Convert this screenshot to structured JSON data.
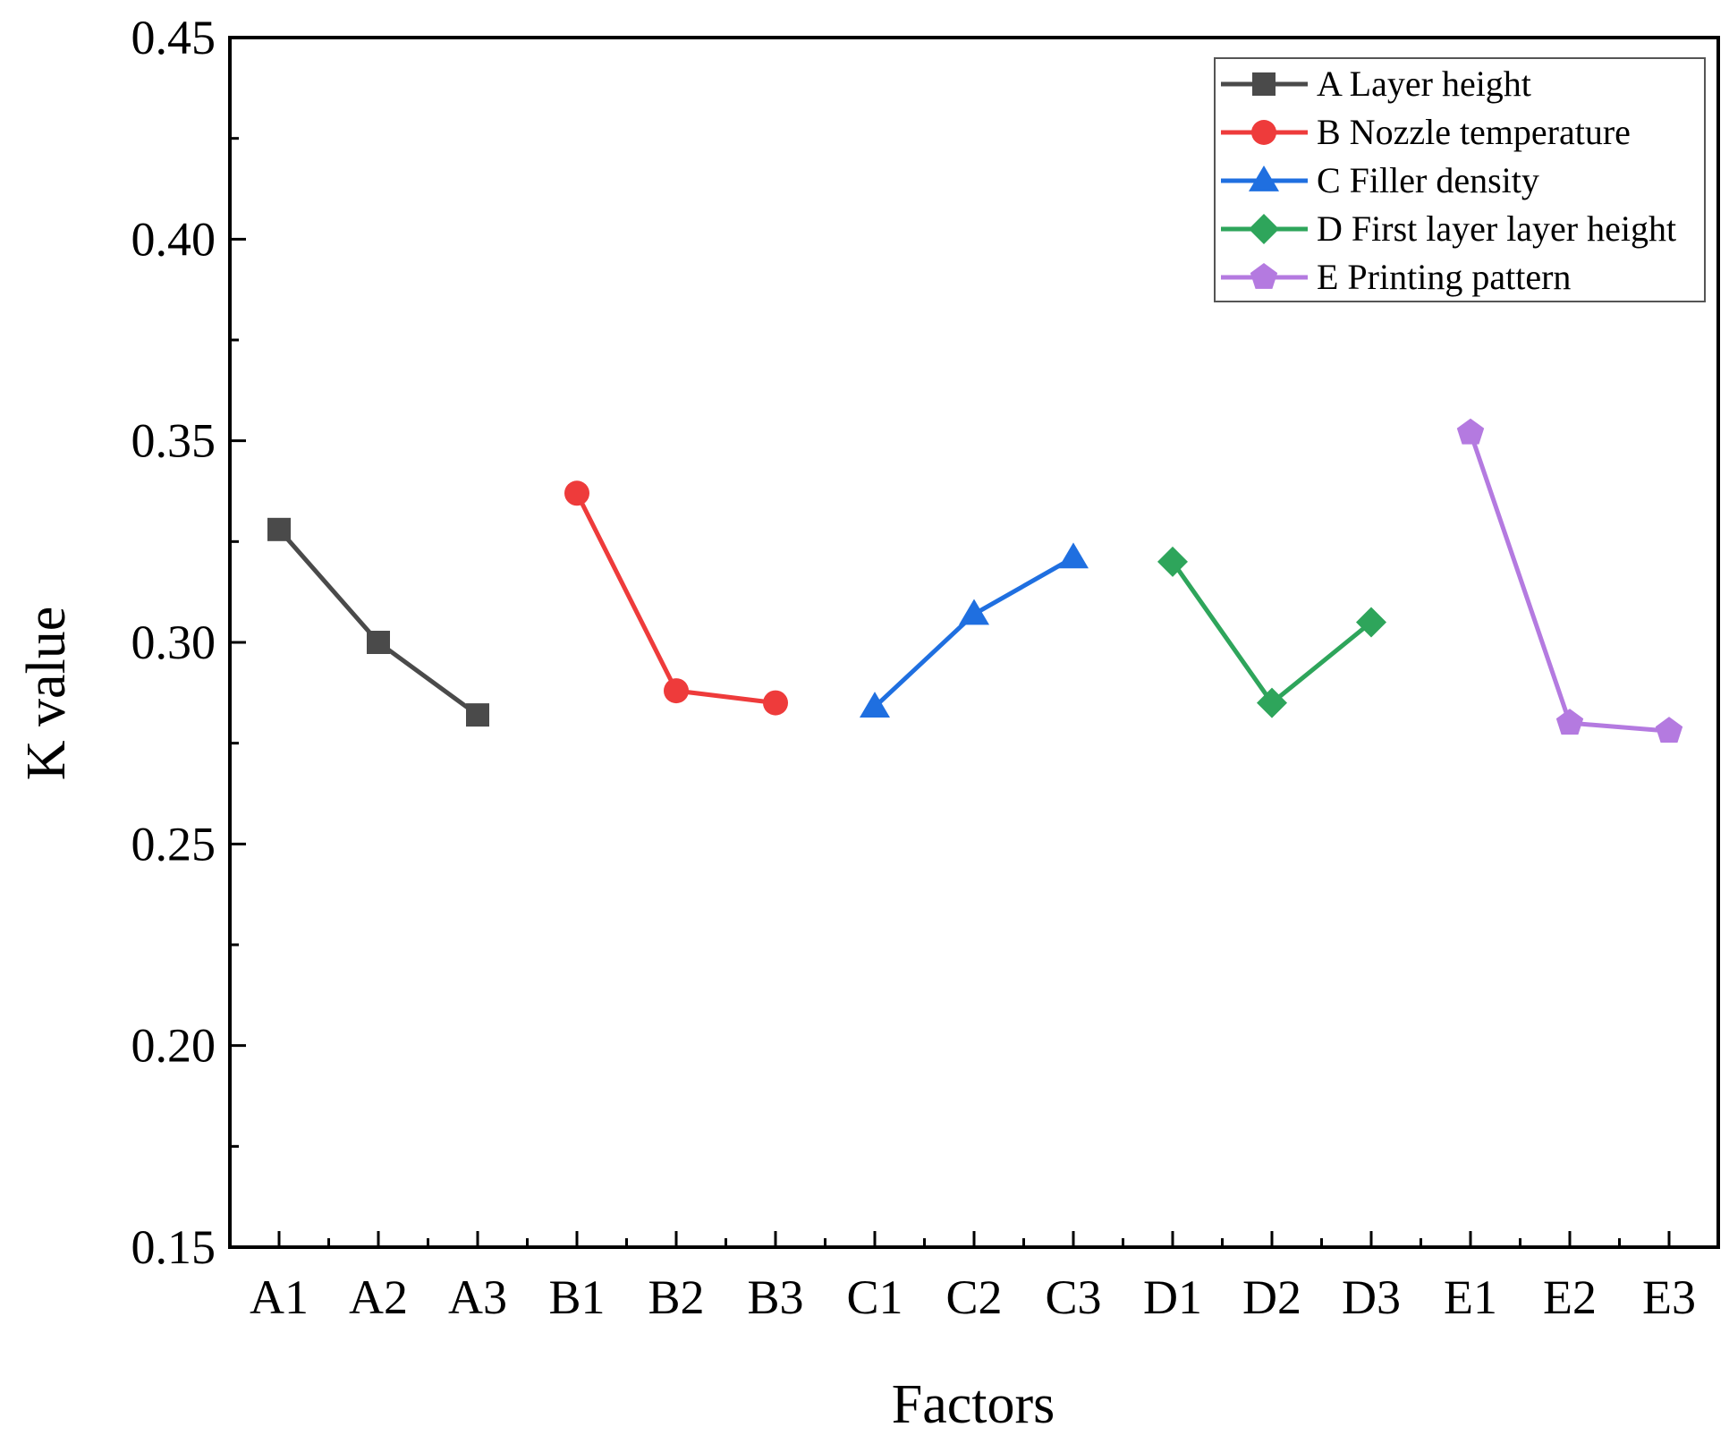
{
  "chart_data": {
    "type": "line",
    "title": "",
    "xlabel": "Factors",
    "ylabel": "K value",
    "ylim": [
      0.15,
      0.45
    ],
    "yticks": [
      "0.15",
      "0.20",
      "0.25",
      "0.30",
      "0.35",
      "0.40",
      "0.45"
    ],
    "categories": [
      "A1",
      "A2",
      "A3",
      "B1",
      "B2",
      "B3",
      "C1",
      "C2",
      "C3",
      "D1",
      "D2",
      "D3",
      "E1",
      "E2",
      "E3"
    ],
    "legend_position": "top-right",
    "series": [
      {
        "name": "A Layer height",
        "marker": "square",
        "color": "#4a4a4a",
        "x": [
          "A1",
          "A2",
          "A3"
        ],
        "values": [
          0.328,
          0.3,
          0.282
        ]
      },
      {
        "name": "B Nozzle temperature",
        "marker": "circle",
        "color": "#ee3b3b",
        "x": [
          "B1",
          "B2",
          "B3"
        ],
        "values": [
          0.337,
          0.288,
          0.285
        ]
      },
      {
        "name": "C Filler density",
        "marker": "triangle",
        "color": "#1f6fe0",
        "x": [
          "C1",
          "C2",
          "C3"
        ],
        "values": [
          0.284,
          0.307,
          0.321
        ]
      },
      {
        "name": "D First layer layer height",
        "marker": "diamond",
        "color": "#2ea55b",
        "x": [
          "D1",
          "D2",
          "D3"
        ],
        "values": [
          0.32,
          0.285,
          0.305
        ]
      },
      {
        "name": "E Printing pattern",
        "marker": "pentagon",
        "color": "#b47ae0",
        "x": [
          "E1",
          "E2",
          "E3"
        ],
        "values": [
          0.352,
          0.28,
          0.278
        ]
      }
    ]
  }
}
